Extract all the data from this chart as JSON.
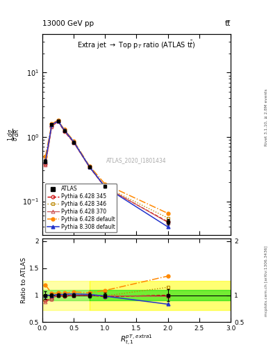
{
  "title_top": "13000 GeV pp",
  "title_top_right": "tt̅",
  "plot_title": "Extra jet → Top p$_T$ ratio (ATLAS t̅bar)",
  "xlabel": "$R_{t,1}^{pT,extra1}$",
  "ylabel_main": "$\\frac{1}{\\sigma}\\frac{d\\sigma}{dR}$",
  "ylabel_ratio": "Ratio to ATLAS",
  "right_label_main": "Rivet 3.1.10, ≥ 2.8M events",
  "right_label_ratio": "mcplots.cern.ch [arXiv:1306.3436]",
  "watermark": "ATLAS_2020_I1801434",
  "x_data": [
    0.05,
    0.15,
    0.25,
    0.35,
    0.5,
    0.75,
    1.0,
    2.0
  ],
  "ATLAS_y": [
    0.42,
    1.55,
    1.75,
    1.25,
    0.82,
    0.34,
    0.17,
    0.048
  ],
  "ATLAS_yerr": [
    0.03,
    0.05,
    0.05,
    0.04,
    0.03,
    0.015,
    0.008,
    0.005
  ],
  "p6_345_y": [
    0.38,
    1.45,
    1.75,
    1.22,
    0.82,
    0.34,
    0.165,
    0.048
  ],
  "p6_346_y": [
    0.42,
    1.52,
    1.78,
    1.27,
    0.84,
    0.345,
    0.168,
    0.055
  ],
  "p6_370_y": [
    0.37,
    1.44,
    1.78,
    1.25,
    0.82,
    0.34,
    0.168,
    0.047
  ],
  "p6_def_y": [
    0.5,
    1.6,
    1.82,
    1.3,
    0.87,
    0.355,
    0.185,
    0.065
  ],
  "p8_def_y": [
    0.42,
    1.55,
    1.77,
    1.27,
    0.84,
    0.345,
    0.167,
    0.04
  ],
  "color_atlas": "#000000",
  "color_p6_345": "#cc0000",
  "color_p6_346": "#bb8800",
  "color_p6_370": "#cc5555",
  "color_p6_def": "#ff8800",
  "color_p8_def": "#2233cc",
  "band_green_lo": 0.9,
  "band_green_hi": 1.1,
  "band_yellow_lo": 0.73,
  "band_yellow_hi": 1.27,
  "band_xstart": 0.75,
  "ylim_main": [
    0.03,
    40
  ],
  "ylim_ratio": [
    0.5,
    2.05
  ],
  "xlim": [
    0.0,
    3.0
  ]
}
